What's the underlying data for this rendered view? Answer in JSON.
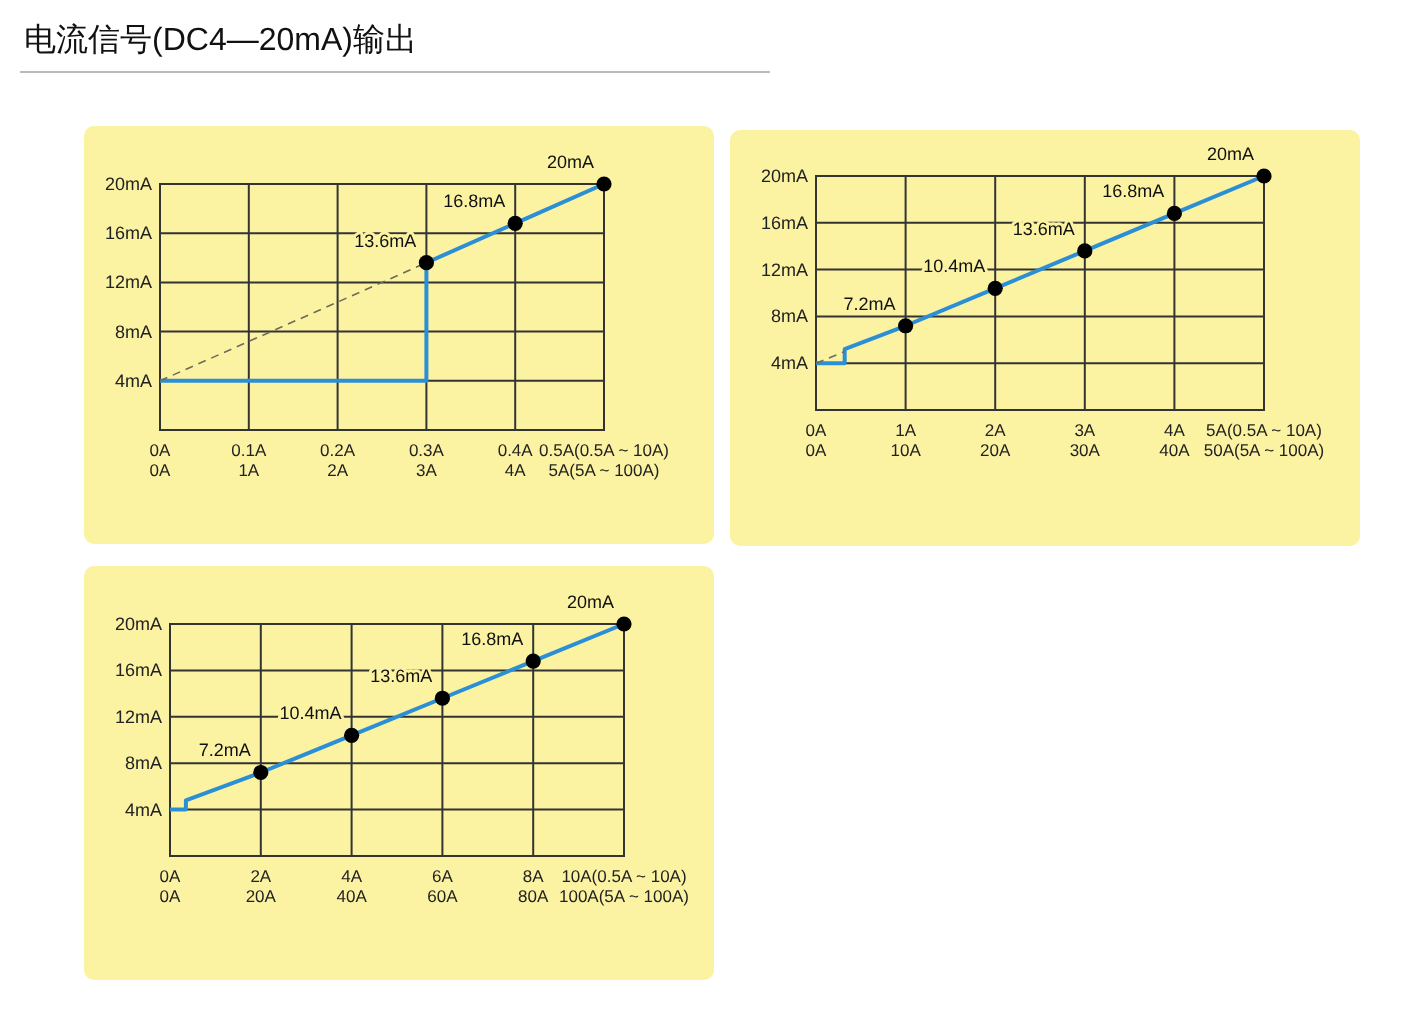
{
  "chart_data": [
    {
      "type": "line",
      "title": "电流信号(DC4—20mA)输出",
      "xlim": [
        0,
        0.5
      ],
      "x2lim": [
        0,
        5
      ],
      "ylim": [
        0,
        20
      ],
      "grid": true,
      "xticks": [
        {
          "value": 0,
          "label": "0A"
        },
        {
          "value": 0.1,
          "label": "0.1A"
        },
        {
          "value": 0.2,
          "label": "0.2A"
        },
        {
          "value": 0.3,
          "label": "0.3A"
        },
        {
          "value": 0.4,
          "label": "0.4A"
        },
        {
          "value": 0.5,
          "label": "0.5A(0.5A ~ 10A)"
        }
      ],
      "x2ticks": [
        {
          "value": 0,
          "label": "0A"
        },
        {
          "value": 1,
          "label": "1A"
        },
        {
          "value": 2,
          "label": "2A"
        },
        {
          "value": 3,
          "label": "3A"
        },
        {
          "value": 4,
          "label": "4A"
        },
        {
          "value": 5,
          "label": "5A(5A ~ 100A)"
        }
      ],
      "yticks": [
        {
          "value": 4,
          "label": "4mA"
        },
        {
          "value": 8,
          "label": "8mA"
        },
        {
          "value": 12,
          "label": "12mA"
        },
        {
          "value": 16,
          "label": "16mA"
        },
        {
          "value": 20,
          "label": "20mA"
        }
      ],
      "series": [
        {
          "type": "line",
          "color": "#2b8fd6",
          "line_style": "solid",
          "marker": "none",
          "x": [
            0,
            0.3,
            0.3,
            0.4,
            0.5
          ],
          "values": [
            4,
            4,
            13.6,
            16.8,
            20
          ]
        },
        {
          "type": "line",
          "color": "#6b6b5a",
          "line_style": "dashed",
          "marker": "none",
          "x": [
            0,
            0.3
          ],
          "values": [
            4,
            13.6
          ]
        },
        {
          "type": "scatter",
          "color": "#000000",
          "marker": "circle",
          "x": [
            0.3,
            0.4,
            0.5
          ],
          "values": [
            13.6,
            16.8,
            20
          ],
          "value_labels": [
            "13.6mA",
            "16.8mA",
            "20mA"
          ]
        }
      ]
    },
    {
      "type": "line",
      "xlim": [
        0,
        5
      ],
      "x2lim": [
        0,
        50
      ],
      "ylim": [
        0,
        20
      ],
      "grid": true,
      "xticks": [
        {
          "value": 0,
          "label": "0A"
        },
        {
          "value": 1,
          "label": "1A"
        },
        {
          "value": 2,
          "label": "2A"
        },
        {
          "value": 3,
          "label": "3A"
        },
        {
          "value": 4,
          "label": "4A"
        },
        {
          "value": 5,
          "label": "5A(0.5A ~ 10A)"
        }
      ],
      "x2ticks": [
        {
          "value": 0,
          "label": "0A"
        },
        {
          "value": 10,
          "label": "10A"
        },
        {
          "value": 20,
          "label": "20A"
        },
        {
          "value": 30,
          "label": "30A"
        },
        {
          "value": 40,
          "label": "40A"
        },
        {
          "value": 50,
          "label": "50A(5A ~ 100A)"
        }
      ],
      "yticks": [
        {
          "value": 4,
          "label": "4mA"
        },
        {
          "value": 8,
          "label": "8mA"
        },
        {
          "value": 12,
          "label": "12mA"
        },
        {
          "value": 16,
          "label": "16mA"
        },
        {
          "value": 20,
          "label": "20mA"
        }
      ],
      "series": [
        {
          "type": "line",
          "color": "#2b8fd6",
          "line_style": "solid",
          "marker": "none",
          "x": [
            0,
            0.32,
            0.32,
            1,
            2,
            3,
            4,
            5
          ],
          "values": [
            4,
            4,
            5.2,
            7.2,
            10.4,
            13.6,
            16.8,
            20
          ]
        },
        {
          "type": "line",
          "color": "#6b6b5a",
          "line_style": "dashed",
          "marker": "none",
          "x": [
            0,
            0.32
          ],
          "values": [
            4,
            5
          ]
        },
        {
          "type": "scatter",
          "color": "#000000",
          "marker": "circle",
          "x": [
            1,
            2,
            3,
            4,
            5
          ],
          "values": [
            7.2,
            10.4,
            13.6,
            16.8,
            20
          ],
          "value_labels": [
            "7.2mA",
            "10.4mA",
            "13.6mA",
            "16.8mA",
            "20mA"
          ]
        }
      ]
    },
    {
      "type": "line",
      "xlim": [
        0,
        10
      ],
      "x2lim": [
        0,
        100
      ],
      "ylim": [
        0,
        20
      ],
      "grid": true,
      "xticks": [
        {
          "value": 0,
          "label": "0A"
        },
        {
          "value": 2,
          "label": "2A"
        },
        {
          "value": 4,
          "label": "4A"
        },
        {
          "value": 6,
          "label": "6A"
        },
        {
          "value": 8,
          "label": "8A"
        },
        {
          "value": 10,
          "label": "10A(0.5A ~ 10A)"
        }
      ],
      "x2ticks": [
        {
          "value": 0,
          "label": "0A"
        },
        {
          "value": 20,
          "label": "20A"
        },
        {
          "value": 40,
          "label": "40A"
        },
        {
          "value": 60,
          "label": "60A"
        },
        {
          "value": 80,
          "label": "80A"
        },
        {
          "value": 100,
          "label": "100A(5A ~ 100A)"
        }
      ],
      "yticks": [
        {
          "value": 4,
          "label": "4mA"
        },
        {
          "value": 8,
          "label": "8mA"
        },
        {
          "value": 12,
          "label": "12mA"
        },
        {
          "value": 16,
          "label": "16mA"
        },
        {
          "value": 20,
          "label": "20mA"
        }
      ],
      "series": [
        {
          "type": "line",
          "color": "#2b8fd6",
          "line_style": "solid",
          "marker": "none",
          "x": [
            0,
            0.35,
            0.35,
            2,
            4,
            6,
            8,
            10
          ],
          "values": [
            4,
            4,
            4.8,
            7.2,
            10.4,
            13.6,
            16.8,
            20
          ]
        },
        {
          "type": "scatter",
          "color": "#000000",
          "marker": "circle",
          "x": [
            2,
            4,
            6,
            8,
            10
          ],
          "values": [
            7.2,
            10.4,
            13.6,
            16.8,
            20
          ],
          "value_labels": [
            "7.2mA",
            "10.4mA",
            "13.6mA",
            "16.8mA",
            "20mA"
          ]
        }
      ]
    }
  ]
}
